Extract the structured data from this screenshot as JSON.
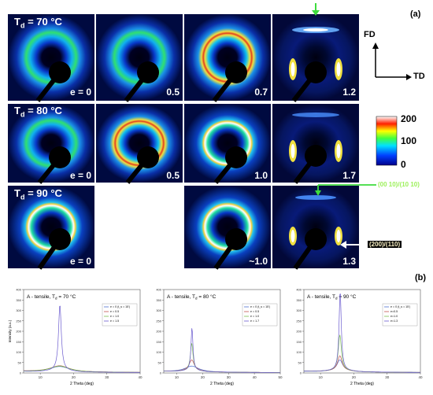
{
  "panel_a_label": "(a)",
  "panel_b_label": "(b)",
  "rows": [
    {
      "label_base": "T",
      "label_sub": "d",
      "label_rest": " = 70 °C",
      "strains": [
        "e = 0",
        "0.5",
        "0.7",
        "1.2"
      ]
    },
    {
      "label_base": "T",
      "label_sub": "d",
      "label_rest": " = 80 °C",
      "strains": [
        "e = 0",
        "0.5",
        "1.0",
        "1.7"
      ]
    },
    {
      "label_base": "T",
      "label_sub": "d",
      "label_rest": " = 90 °C",
      "strains": [
        "e = 0",
        "~1.0",
        "1.3"
      ]
    }
  ],
  "axes_legend": {
    "fd": "FD",
    "td": "TD"
  },
  "colorbar": {
    "ticks": [
      "200",
      "100",
      "0"
    ]
  },
  "annotations": {
    "plane_top": "(00 10)/(10 10)",
    "plane_side": "(200)/(110)"
  },
  "colors": {
    "arrow_green": "#3ddc3d",
    "arrow_white": "#ffffff",
    "text_green": "#9cf05a",
    "text_white": "#fff6c8"
  },
  "chart_data": [
    {
      "type": "line",
      "title": "A - tensile, Td = 70 °C",
      "title_base": "A - tensile, T",
      "title_sub": "d",
      "title_rest": " = 70 °C",
      "xlabel": "2 Theta (deg)",
      "ylabel": "Intensity (a.u.)",
      "xlim": [
        5,
        40
      ],
      "ylim": [
        0,
        400
      ],
      "xticks": [
        "10",
        "20",
        "30",
        "40"
      ],
      "yticks": [
        "0",
        "50",
        "100",
        "150",
        "200",
        "250",
        "300",
        "350",
        "400"
      ],
      "legend_position": "top-right",
      "legend": [
        "e = 0 (t_s = 15')",
        "e = 0.5",
        "e = 1.0",
        "e = 1.5"
      ],
      "series": [
        {
          "name": "e = 0 (t_s = 15')",
          "color": "#4d6fd1",
          "peak_x": 15.8,
          "peak_y": 28,
          "width": 3.5,
          "base": 8
        },
        {
          "name": "e = 0.5",
          "color": "#c0504d",
          "peak_x": 15.8,
          "peak_y": 32,
          "width": 3.2,
          "base": 9
        },
        {
          "name": "e = 1.0",
          "color": "#7cbf4f",
          "peak_x": 15.8,
          "peak_y": 30,
          "width": 3.4,
          "base": 8
        },
        {
          "name": "e = 1.5",
          "color": "#6b5bcf",
          "peak_x": 15.9,
          "peak_y": 325,
          "width": 0.5,
          "base": 8
        }
      ]
    },
    {
      "type": "line",
      "title": "A - tensile, Td = 80 °C",
      "title_base": "A - tensile, T",
      "title_sub": "d",
      "title_rest": " = 80 °C",
      "xlabel": "2 Theta (deg)",
      "ylabel": "",
      "xlim": [
        5,
        50
      ],
      "ylim": [
        0,
        400
      ],
      "xticks": [
        "10",
        "20",
        "30",
        "40",
        "50"
      ],
      "yticks": [
        "0",
        "50",
        "100",
        "150",
        "200",
        "250",
        "300",
        "350",
        "400"
      ],
      "legend_position": "top-right",
      "legend": [
        "e = 0 (t_s = 15')",
        "e = 0.5",
        "e = 1.0",
        "e = 1.7"
      ],
      "series": [
        {
          "name": "e = 0 (t_s = 15')",
          "color": "#4d6fd1",
          "peak_x": 15.8,
          "peak_y": 30,
          "width": 3.0,
          "base": 8
        },
        {
          "name": "e = 0.5",
          "color": "#c0504d",
          "peak_x": 15.8,
          "peak_y": 60,
          "width": 1.2,
          "base": 9
        },
        {
          "name": "e = 1.0",
          "color": "#7cbf4f",
          "peak_x": 15.8,
          "peak_y": 140,
          "width": 0.6,
          "base": 9
        },
        {
          "name": "e = 1.7",
          "color": "#6b5bcf",
          "peak_x": 15.9,
          "peak_y": 215,
          "width": 0.45,
          "base": 9
        }
      ]
    },
    {
      "type": "line",
      "title": "A - tensile, Td = 90 °C",
      "title_base": "A - tensile, T",
      "title_sub": "d",
      "title_rest": " = 90 °C",
      "xlabel": "2 Theta (deg)",
      "ylabel": "",
      "xlim": [
        5,
        40
      ],
      "ylim": [
        0,
        400
      ],
      "xticks": [
        "10",
        "20",
        "30",
        "40"
      ],
      "yticks": [
        "0",
        "50",
        "100",
        "150",
        "200",
        "250",
        "300",
        "350",
        "400"
      ],
      "legend_position": "top-right",
      "legend": [
        "e = 0 (t_s = 15')",
        "e=0.5",
        "e=1.0",
        "e=1.3"
      ],
      "series": [
        {
          "name": "e = 0 (t_s = 15')",
          "color": "#4d6fd1",
          "peak_x": 15.8,
          "peak_y": 60,
          "width": 1.0,
          "base": 8
        },
        {
          "name": "e=0.5",
          "color": "#c0504d",
          "peak_x": 15.8,
          "peak_y": 80,
          "width": 0.8,
          "base": 9
        },
        {
          "name": "e=1.0",
          "color": "#7cbf4f",
          "peak_x": 15.8,
          "peak_y": 180,
          "width": 0.55,
          "base": 9
        },
        {
          "name": "e=1.3",
          "color": "#6b5bcf",
          "peak_x": 15.9,
          "peak_y": 390,
          "width": 0.4,
          "base": 9
        }
      ]
    }
  ]
}
